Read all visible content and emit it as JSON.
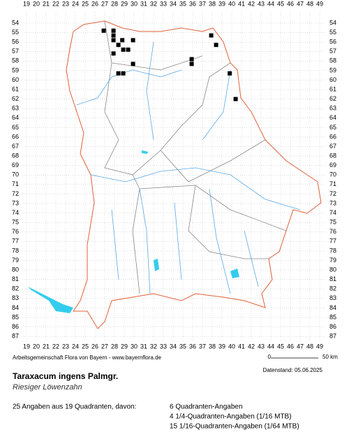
{
  "map": {
    "columns": [
      19,
      20,
      21,
      22,
      23,
      24,
      25,
      26,
      27,
      28,
      29,
      30,
      31,
      32,
      33,
      34,
      35,
      36,
      37,
      38,
      39,
      40,
      41,
      42,
      43,
      44,
      45,
      46,
      47,
      48,
      49
    ],
    "rows": [
      54,
      55,
      56,
      57,
      58,
      59,
      60,
      61,
      62,
      63,
      64,
      65,
      66,
      67,
      68,
      69,
      70,
      71,
      72,
      73,
      74,
      75,
      76,
      77,
      78,
      79,
      80,
      81,
      82,
      83,
      84,
      85,
      86,
      87
    ],
    "records": [
      [
        26.9,
        54.8
      ],
      [
        27.9,
        54.8
      ],
      [
        27.9,
        55.3
      ],
      [
        27.9,
        55.8
      ],
      [
        28.8,
        55.8
      ],
      [
        29.9,
        55.8
      ],
      [
        28.4,
        56.3
      ],
      [
        28.9,
        56.8
      ],
      [
        29.4,
        56.8
      ],
      [
        27.9,
        57.2
      ],
      [
        29.9,
        58.3
      ],
      [
        28.4,
        59.3
      ],
      [
        28.9,
        59.3
      ],
      [
        35.9,
        57.8
      ],
      [
        35.9,
        58.3
      ],
      [
        37.9,
        55.3
      ],
      [
        38.4,
        56.3
      ],
      [
        39.8,
        59.3
      ],
      [
        40.4,
        62.0
      ]
    ]
  },
  "footer": {
    "credit": "Arbeitsgemeinschaft Flora von Bayern - www.bayernflora.de",
    "scale_start": "0",
    "scale_end": "50 km",
    "date": "Datenstand: 05.06.2025"
  },
  "species": {
    "name": "Taraxacum ingens Palmgr.",
    "common_name": "Riesiger Löwenzahn"
  },
  "summary": {
    "total": "25 Angaben aus 19 Quadranten, davon:",
    "lines": [
      "6 Quadranten-Angaben",
      "4 1/4-Quadranten-Angaben (1/16 MTB)",
      "15 1/16-Quadranten-Angaben (1/64 MTB)"
    ]
  }
}
